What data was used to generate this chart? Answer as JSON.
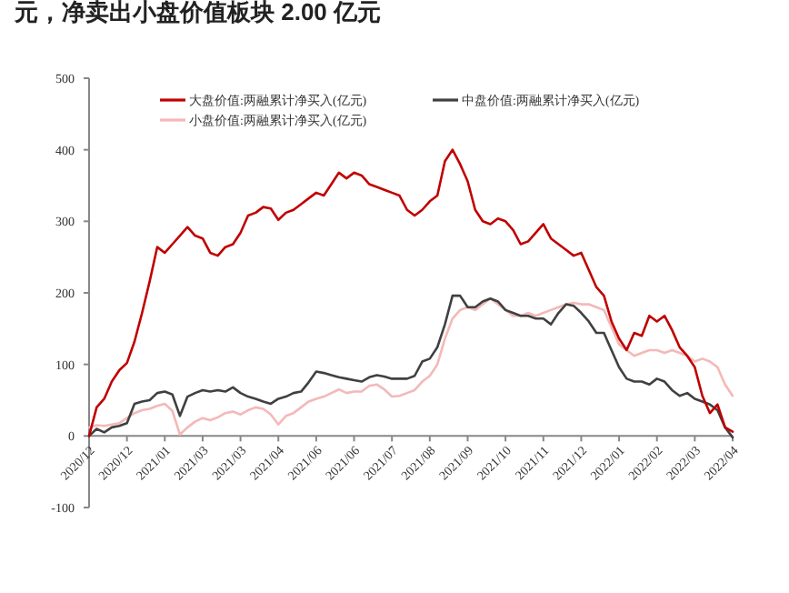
{
  "chart_data": {
    "type": "line",
    "title": "元，净卖出小盘价值板块 2.00 亿元",
    "categories": [
      "2020/12",
      null,
      null,
      null,
      null,
      "2020/12",
      null,
      null,
      null,
      null,
      "2021/01",
      null,
      null,
      null,
      null,
      "2021/03",
      null,
      null,
      null,
      null,
      "2021/03",
      null,
      null,
      null,
      null,
      "2021/04",
      null,
      null,
      null,
      null,
      "2021/06",
      null,
      null,
      null,
      null,
      "2021/06",
      null,
      null,
      null,
      null,
      "2021/07",
      null,
      null,
      null,
      null,
      "2021/08",
      null,
      null,
      null,
      null,
      "2021/09",
      null,
      null,
      null,
      null,
      "2021/10",
      null,
      null,
      null,
      null,
      "2021/11",
      null,
      null,
      null,
      null,
      "2021/12",
      null,
      null,
      null,
      null,
      "2022/01",
      null,
      null,
      null,
      null,
      "2022/02",
      null,
      null,
      null,
      null,
      "2022/03",
      null,
      null,
      null,
      null,
      "2022/04"
    ],
    "ylim": [
      -100,
      500
    ],
    "yticks": [
      -100,
      0,
      100,
      200,
      300,
      400,
      500
    ],
    "grid": false,
    "legend": "top",
    "line_style": "solid",
    "marker": "none",
    "series": [
      {
        "name": "大盘价值:两融累计净买入(亿元)",
        "color": "#c00000",
        "values": [
          0,
          40,
          52,
          76,
          92,
          102,
          132,
          172,
          216,
          264,
          256,
          268,
          280,
          292,
          280,
          276,
          256,
          252,
          264,
          268,
          284,
          308,
          312,
          320,
          318,
          302,
          312,
          316,
          324,
          332,
          340,
          336,
          352,
          368,
          360,
          368,
          364,
          352,
          348,
          344,
          340,
          336,
          316,
          308,
          316,
          328,
          336,
          384,
          400,
          380,
          356,
          316,
          300,
          296,
          304,
          300,
          288,
          268,
          272,
          284,
          296,
          276,
          268,
          260,
          252,
          256,
          232,
          208,
          196,
          160,
          136,
          120,
          144,
          140,
          168,
          160,
          168,
          148,
          124,
          112,
          96,
          56,
          32,
          44,
          12,
          6
        ]
      },
      {
        "name": "中盘价值:两融累计净买入(亿元)",
        "color": "#404040",
        "values": [
          0,
          10,
          5,
          12,
          14,
          18,
          45,
          48,
          50,
          60,
          62,
          58,
          28,
          55,
          60,
          64,
          62,
          64,
          62,
          68,
          60,
          55,
          52,
          48,
          45,
          52,
          55,
          60,
          62,
          75,
          90,
          88,
          85,
          82,
          80,
          78,
          76,
          82,
          85,
          83,
          80,
          80,
          80,
          84,
          104,
          108,
          124,
          156,
          196,
          196,
          180,
          180,
          188,
          192,
          188,
          176,
          172,
          168,
          168,
          164,
          164,
          156,
          172,
          184,
          182,
          172,
          160,
          144,
          144,
          120,
          96,
          80,
          76,
          76,
          72,
          80,
          76,
          64,
          56,
          60,
          52,
          48,
          44,
          36,
          12,
          -2
        ]
      },
      {
        "name": "小盘价值:两融累计净买入(亿元)",
        "color": "#f4b8b8",
        "values": [
          12,
          15,
          14,
          16,
          18,
          25,
          32,
          36,
          38,
          42,
          45,
          35,
          2,
          12,
          20,
          25,
          22,
          26,
          32,
          34,
          30,
          36,
          40,
          38,
          30,
          16,
          28,
          32,
          40,
          48,
          52,
          55,
          60,
          65,
          60,
          62,
          62,
          70,
          72,
          65,
          55,
          56,
          60,
          64,
          76,
          84,
          100,
          136,
          164,
          176,
          180,
          176,
          184,
          192,
          184,
          176,
          168,
          168,
          172,
          168,
          172,
          176,
          180,
          184,
          186,
          184,
          184,
          180,
          176,
          152,
          128,
          120,
          112,
          116,
          120,
          120,
          116,
          120,
          116,
          112,
          104,
          108,
          104,
          96,
          72,
          56
        ]
      }
    ]
  }
}
